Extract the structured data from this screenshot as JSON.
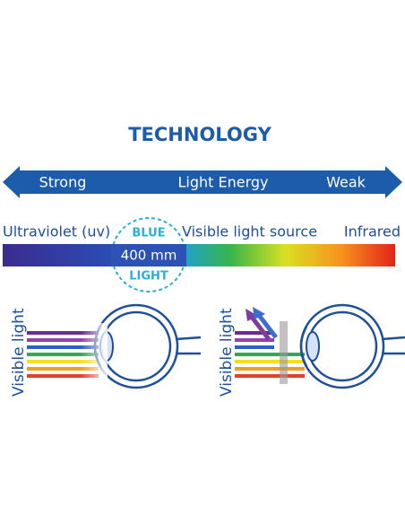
{
  "title": "TECHNOLOGY",
  "energy_scale": {
    "left": "Strong",
    "center": "Light Energy",
    "right": "Weak"
  },
  "spectrum": {
    "left": "Ultraviolet (uv)",
    "center": "Visible light source",
    "right": "Infrared",
    "badge": [
      "BLUE",
      "400 mm",
      "LIGHT"
    ]
  },
  "panels": [
    {
      "label": "Visible light"
    },
    {
      "label": "Visible light"
    }
  ]
}
